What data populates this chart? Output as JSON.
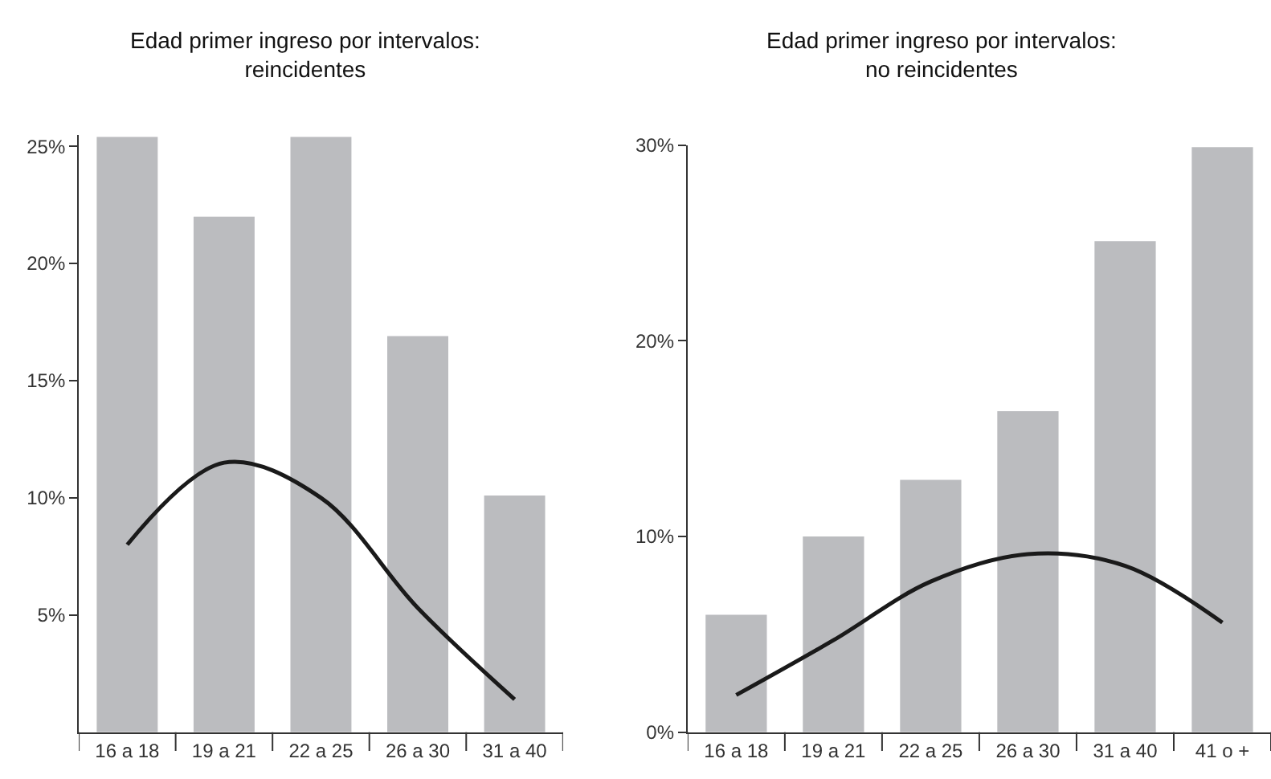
{
  "chart_data": [
    {
      "type": "bar",
      "title": "Edad primer ingreso por intervalos:\nreincidentes",
      "categories": [
        "16 a 18",
        "19 a 21",
        "22 a 25",
        "26 a 30",
        "31 a 40"
      ],
      "ylim": [
        0,
        25.5
      ],
      "yticks": [
        {
          "value": 5,
          "label": "5%"
        },
        {
          "value": 10,
          "label": "10%"
        },
        {
          "value": 15,
          "label": "15%"
        },
        {
          "value": 20,
          "label": "20%"
        },
        {
          "value": 25,
          "label": "25%"
        }
      ],
      "series": [
        {
          "color": "#bbbcbf",
          "values": [
            25.4,
            22.0,
            25.4,
            16.9,
            10.1
          ]
        },
        {
          "type": "line",
          "color": "#1a1a1a",
          "values": [
            8.0,
            11.5,
            10.0,
            5.3,
            1.4
          ]
        }
      ]
    },
    {
      "type": "bar",
      "title": "Edad primer ingreso por intervalos:\nno reincidentes",
      "categories": [
        "16 a 18",
        "19 a 21",
        "22 a 25",
        "26 a 30",
        "31 a 40",
        "41 o +"
      ],
      "ylim": [
        0,
        30
      ],
      "yticks": [
        {
          "value": 0,
          "label": "0%"
        },
        {
          "value": 10,
          "label": "10%"
        },
        {
          "value": 20,
          "label": "20%"
        },
        {
          "value": 30,
          "label": "30%"
        }
      ],
      "series": [
        {
          "color": "#bbbcbf",
          "values": [
            6.0,
            10.0,
            12.9,
            16.4,
            25.1,
            29.9
          ]
        },
        {
          "type": "line",
          "color": "#1a1a1a",
          "values": [
            1.9,
            4.7,
            7.7,
            9.1,
            8.5,
            5.6
          ]
        }
      ]
    }
  ]
}
